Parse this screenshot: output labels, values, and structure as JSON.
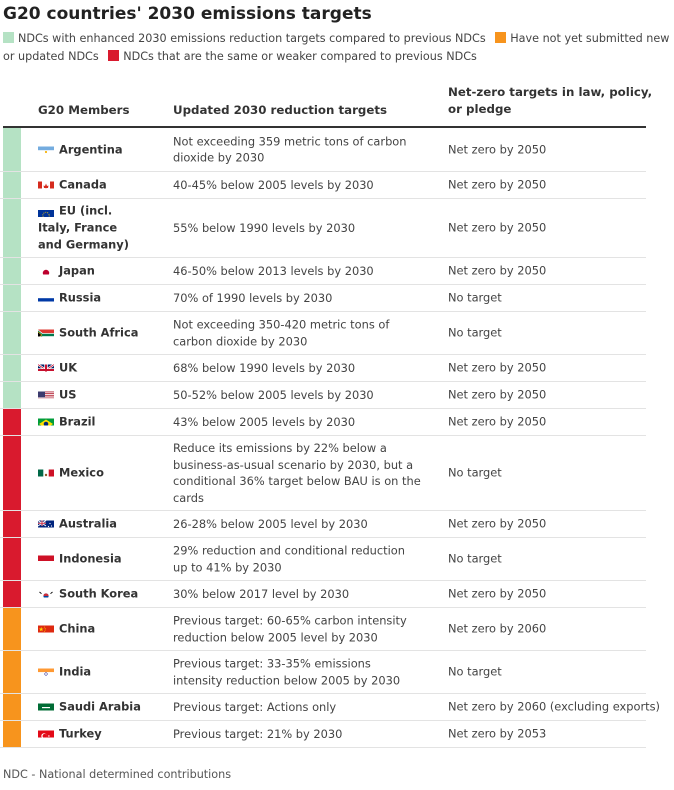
{
  "title": "G20 countries' 2030 emissions targets",
  "legend": [
    {
      "label": "NDCs with enhanced 2030 emissions reduction targets compared to previous NDCs",
      "color": "#b5e2c4"
    },
    {
      "label": "Have not yet submitted new or updated NDCs",
      "color": "#f7941d"
    },
    {
      "label": "NDCs that are the same or weaker compared to previous NDCs",
      "color": "#d91a2e"
    }
  ],
  "columns": {
    "member": "G20 Members",
    "target": "Updated 2030 reduction targets",
    "netzero": "Net-zero targets in law, policy, or pledge"
  },
  "rows": [
    {
      "member": "Argentina",
      "flag": "argentina-flag-icon",
      "category": "enhanced",
      "target": "Not exceeding 359 metric tons of carbon dioxide by 2030",
      "netzero": "Net zero by 2050"
    },
    {
      "member": "Canada",
      "flag": "canada-flag-icon",
      "category": "enhanced",
      "target": "40-45% below 2005 levels by 2030",
      "netzero": "Net zero by 2050"
    },
    {
      "member": "EU (incl. Italy, France and Germany)",
      "flag": "eu-flag-icon",
      "category": "enhanced",
      "target": "55% below 1990 levels by 2030",
      "netzero": "Net zero by 2050"
    },
    {
      "member": "Japan",
      "flag": "japan-flag-icon",
      "category": "enhanced",
      "target": "46-50% below 2013 levels by 2030",
      "netzero": "Net zero by 2050"
    },
    {
      "member": "Russia",
      "flag": "russia-flag-icon",
      "category": "enhanced",
      "target": "70% of 1990 levels by 2030",
      "netzero": "No target"
    },
    {
      "member": "South Africa",
      "flag": "south-africa-flag-icon",
      "category": "enhanced",
      "target": "Not exceeding 350-420 metric tons of carbon dioxide by 2030",
      "netzero": "No target"
    },
    {
      "member": "UK",
      "flag": "uk-flag-icon",
      "category": "enhanced",
      "target": "68% below 1990 levels by 2030",
      "netzero": "Net zero by 2050"
    },
    {
      "member": "US",
      "flag": "us-flag-icon",
      "category": "enhanced",
      "target": "50-52% below 2005 levels by 2030",
      "netzero": "Net zero by 2050"
    },
    {
      "member": "Brazil",
      "flag": "brazil-flag-icon",
      "category": "weaker",
      "target": "43% below 2005 levels by 2030",
      "netzero": "Net zero by 2050"
    },
    {
      "member": "Mexico",
      "flag": "mexico-flag-icon",
      "category": "weaker",
      "target": "Reduce its emissions by 22% below a business-as-usual scenario by 2030, but a conditional 36% target below BAU is on the cards",
      "netzero": "No target"
    },
    {
      "member": "Australia",
      "flag": "australia-flag-icon",
      "category": "weaker",
      "target": "26-28% below 2005 level by 2030",
      "netzero": "Net zero by 2050"
    },
    {
      "member": "Indonesia",
      "flag": "indonesia-flag-icon",
      "category": "weaker",
      "target": "29% reduction and conditional reduction up to 41% by 2030",
      "netzero": "No target"
    },
    {
      "member": "South Korea",
      "flag": "south-korea-flag-icon",
      "category": "weaker",
      "target": "30% below 2017 level by 2030",
      "netzero": "Net zero by 2050"
    },
    {
      "member": "China",
      "flag": "china-flag-icon",
      "category": "not-submitted",
      "target": "Previous target: 60-65% carbon intensity reduction below 2005 level by 2030",
      "netzero": "Net zero by 2060"
    },
    {
      "member": "India",
      "flag": "india-flag-icon",
      "category": "not-submitted",
      "target": "Previous target: 33-35% emissions intensity reduction below 2005 by 2030",
      "netzero": "No target"
    },
    {
      "member": "Saudi Arabia",
      "flag": "saudi-arabia-flag-icon",
      "category": "not-submitted",
      "target": "Previous target: Actions only",
      "netzero": "Net zero by 2060 (excluding exports)"
    },
    {
      "member": "Turkey",
      "flag": "turkey-flag-icon",
      "category": "not-submitted",
      "target": "Previous target: 21% by 2030",
      "netzero": "Net zero by 2053"
    }
  ],
  "footer": "NDC - National determined contributions"
}
